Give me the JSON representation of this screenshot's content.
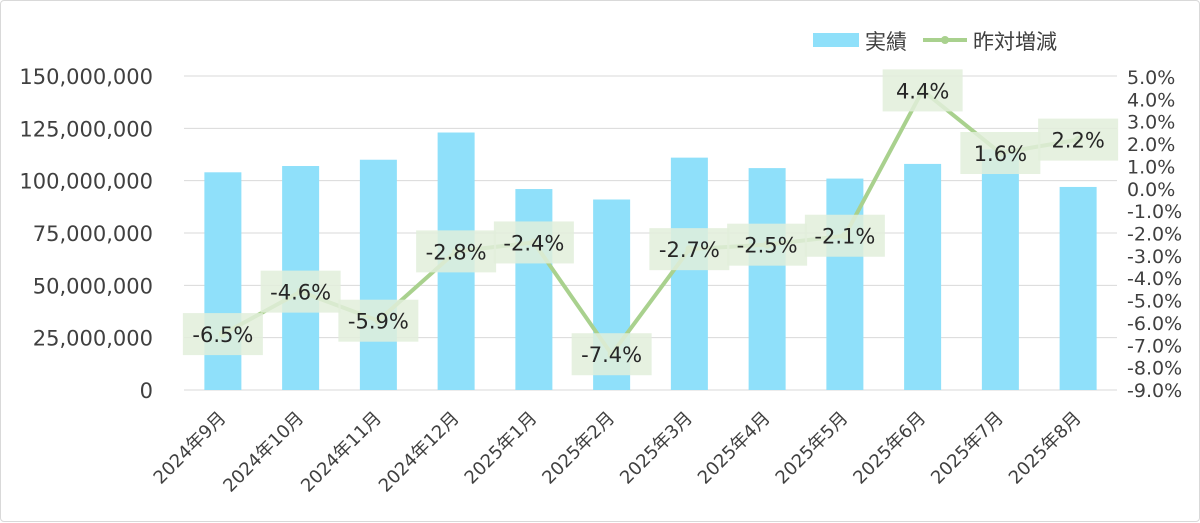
{
  "chart_data": {
    "type": "bar+line",
    "title": "",
    "categories": [
      "2024年9月",
      "2024年10月",
      "2024年11月",
      "2024年12月",
      "2025年1月",
      "2025年2月",
      "2025年3月",
      "2025年4月",
      "2025年5月",
      "2025年6月",
      "2025年7月",
      "2025年8月"
    ],
    "series": [
      {
        "name": "実績",
        "type": "bar",
        "axis": "left",
        "color": "#8fe0fa",
        "values": [
          104000000,
          107000000,
          110000000,
          123000000,
          96000000,
          91000000,
          111000000,
          106000000,
          101000000,
          108000000,
          115000000,
          97000000
        ]
      },
      {
        "name": "昨対増減",
        "type": "line",
        "axis": "right",
        "color": "#a9d18e",
        "values": [
          -6.5,
          -4.6,
          -5.9,
          -2.8,
          -2.4,
          -7.4,
          -2.7,
          -2.5,
          -2.1,
          4.4,
          1.6,
          2.2
        ],
        "labels": [
          "-6.5%",
          "-4.6%",
          "-5.9%",
          "-2.8%",
          "-2.4%",
          "-7.4%",
          "-2.7%",
          "-2.5%",
          "-2.1%",
          "4.4%",
          "1.6%",
          "2.2%"
        ]
      }
    ],
    "y_left": {
      "min": 0,
      "max": 150000000,
      "ticks": [
        0,
        25000000,
        50000000,
        75000000,
        100000000,
        125000000,
        150000000
      ],
      "tick_labels": [
        "0",
        "25,000,000",
        "50,000,000",
        "75,000,000",
        "100,000,000",
        "125,000,000",
        "150,000,000"
      ]
    },
    "y_right": {
      "min": -9.0,
      "max": 5.0,
      "ticks": [
        5,
        4,
        3,
        2,
        1,
        0,
        -1,
        -2,
        -3,
        -4,
        -5,
        -6,
        -7,
        -8,
        -9
      ],
      "tick_labels": [
        "5.0%",
        "4.0%",
        "3.0%",
        "2.0%",
        "1.0%",
        "0.0%",
        "-1.0%",
        "-2.0%",
        "-3.0%",
        "-4.0%",
        "-5.0%",
        "-6.0%",
        "-7.0%",
        "-8.0%",
        "-9.0%"
      ]
    },
    "grid": true,
    "legend": "top-right",
    "label_box_color": "#e2efda"
  }
}
